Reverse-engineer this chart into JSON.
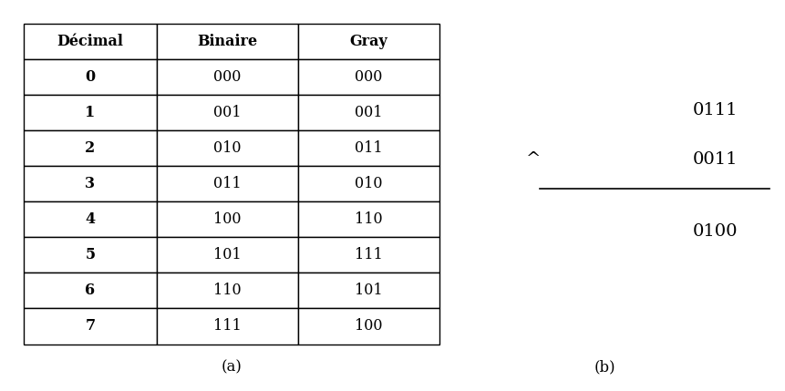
{
  "table_headers": [
    "Décimal",
    "Binaire",
    "Gray"
  ],
  "table_rows": [
    [
      "0",
      "000",
      "000"
    ],
    [
      "1",
      "001",
      "001"
    ],
    [
      "2",
      "010",
      "011"
    ],
    [
      "3",
      "011",
      "010"
    ],
    [
      "4",
      "100",
      "110"
    ],
    [
      "5",
      "101",
      "111"
    ],
    [
      "6",
      "110",
      "101"
    ],
    [
      "7",
      "111",
      "100"
    ]
  ],
  "caption_a": "(a)",
  "caption_b": "(b)",
  "xor_line1": "0111",
  "xor_line2": "0011",
  "xor_result": "0100",
  "xor_caret": "^",
  "bg_color": "#ffffff",
  "text_color": "#000000",
  "header_fontsize": 11.5,
  "cell_fontsize": 11.5,
  "caption_fontsize": 12,
  "xor_fontsize": 14
}
